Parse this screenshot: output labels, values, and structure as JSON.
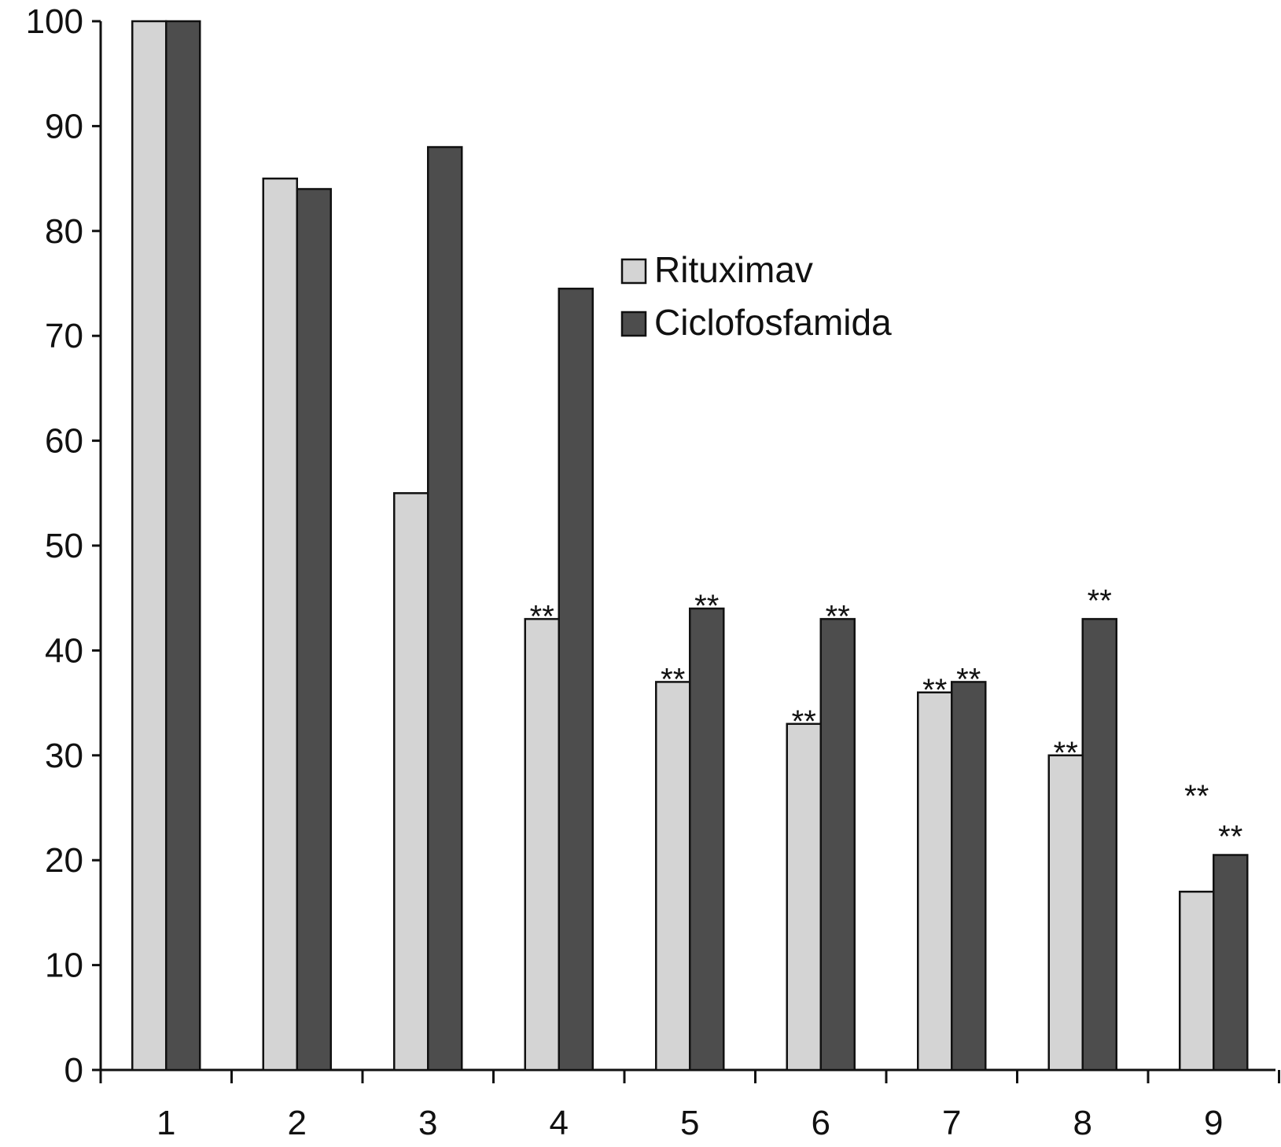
{
  "chart_data": {
    "type": "bar",
    "title": "",
    "xlabel": "",
    "ylabel": "",
    "ylim": [
      0,
      100
    ],
    "yticks": [
      0,
      10,
      20,
      30,
      40,
      50,
      60,
      70,
      80,
      90,
      100
    ],
    "categories": [
      "1",
      "2",
      "3",
      "4",
      "5",
      "6",
      "7",
      "8",
      "9"
    ],
    "series": [
      {
        "name": "Rituximav",
        "color": "#d4d4d4",
        "values": [
          100,
          85,
          55,
          43,
          37,
          33,
          36,
          30,
          17
        ],
        "annotations": [
          "",
          "",
          "",
          "**",
          "**",
          "**",
          "**",
          "**",
          "**"
        ]
      },
      {
        "name": "Ciclofosfamida",
        "color": "#4d4d4d",
        "values": [
          100,
          84,
          88,
          74.5,
          44,
          43,
          37,
          43,
          20.5
        ],
        "annotations": [
          "",
          "",
          "",
          "",
          "**",
          "**",
          "**",
          "**",
          "**"
        ]
      }
    ],
    "legend": {
      "position": "top-center",
      "entries": [
        "Rituximav",
        "Ciclofosfamida"
      ]
    },
    "grid": false
  }
}
